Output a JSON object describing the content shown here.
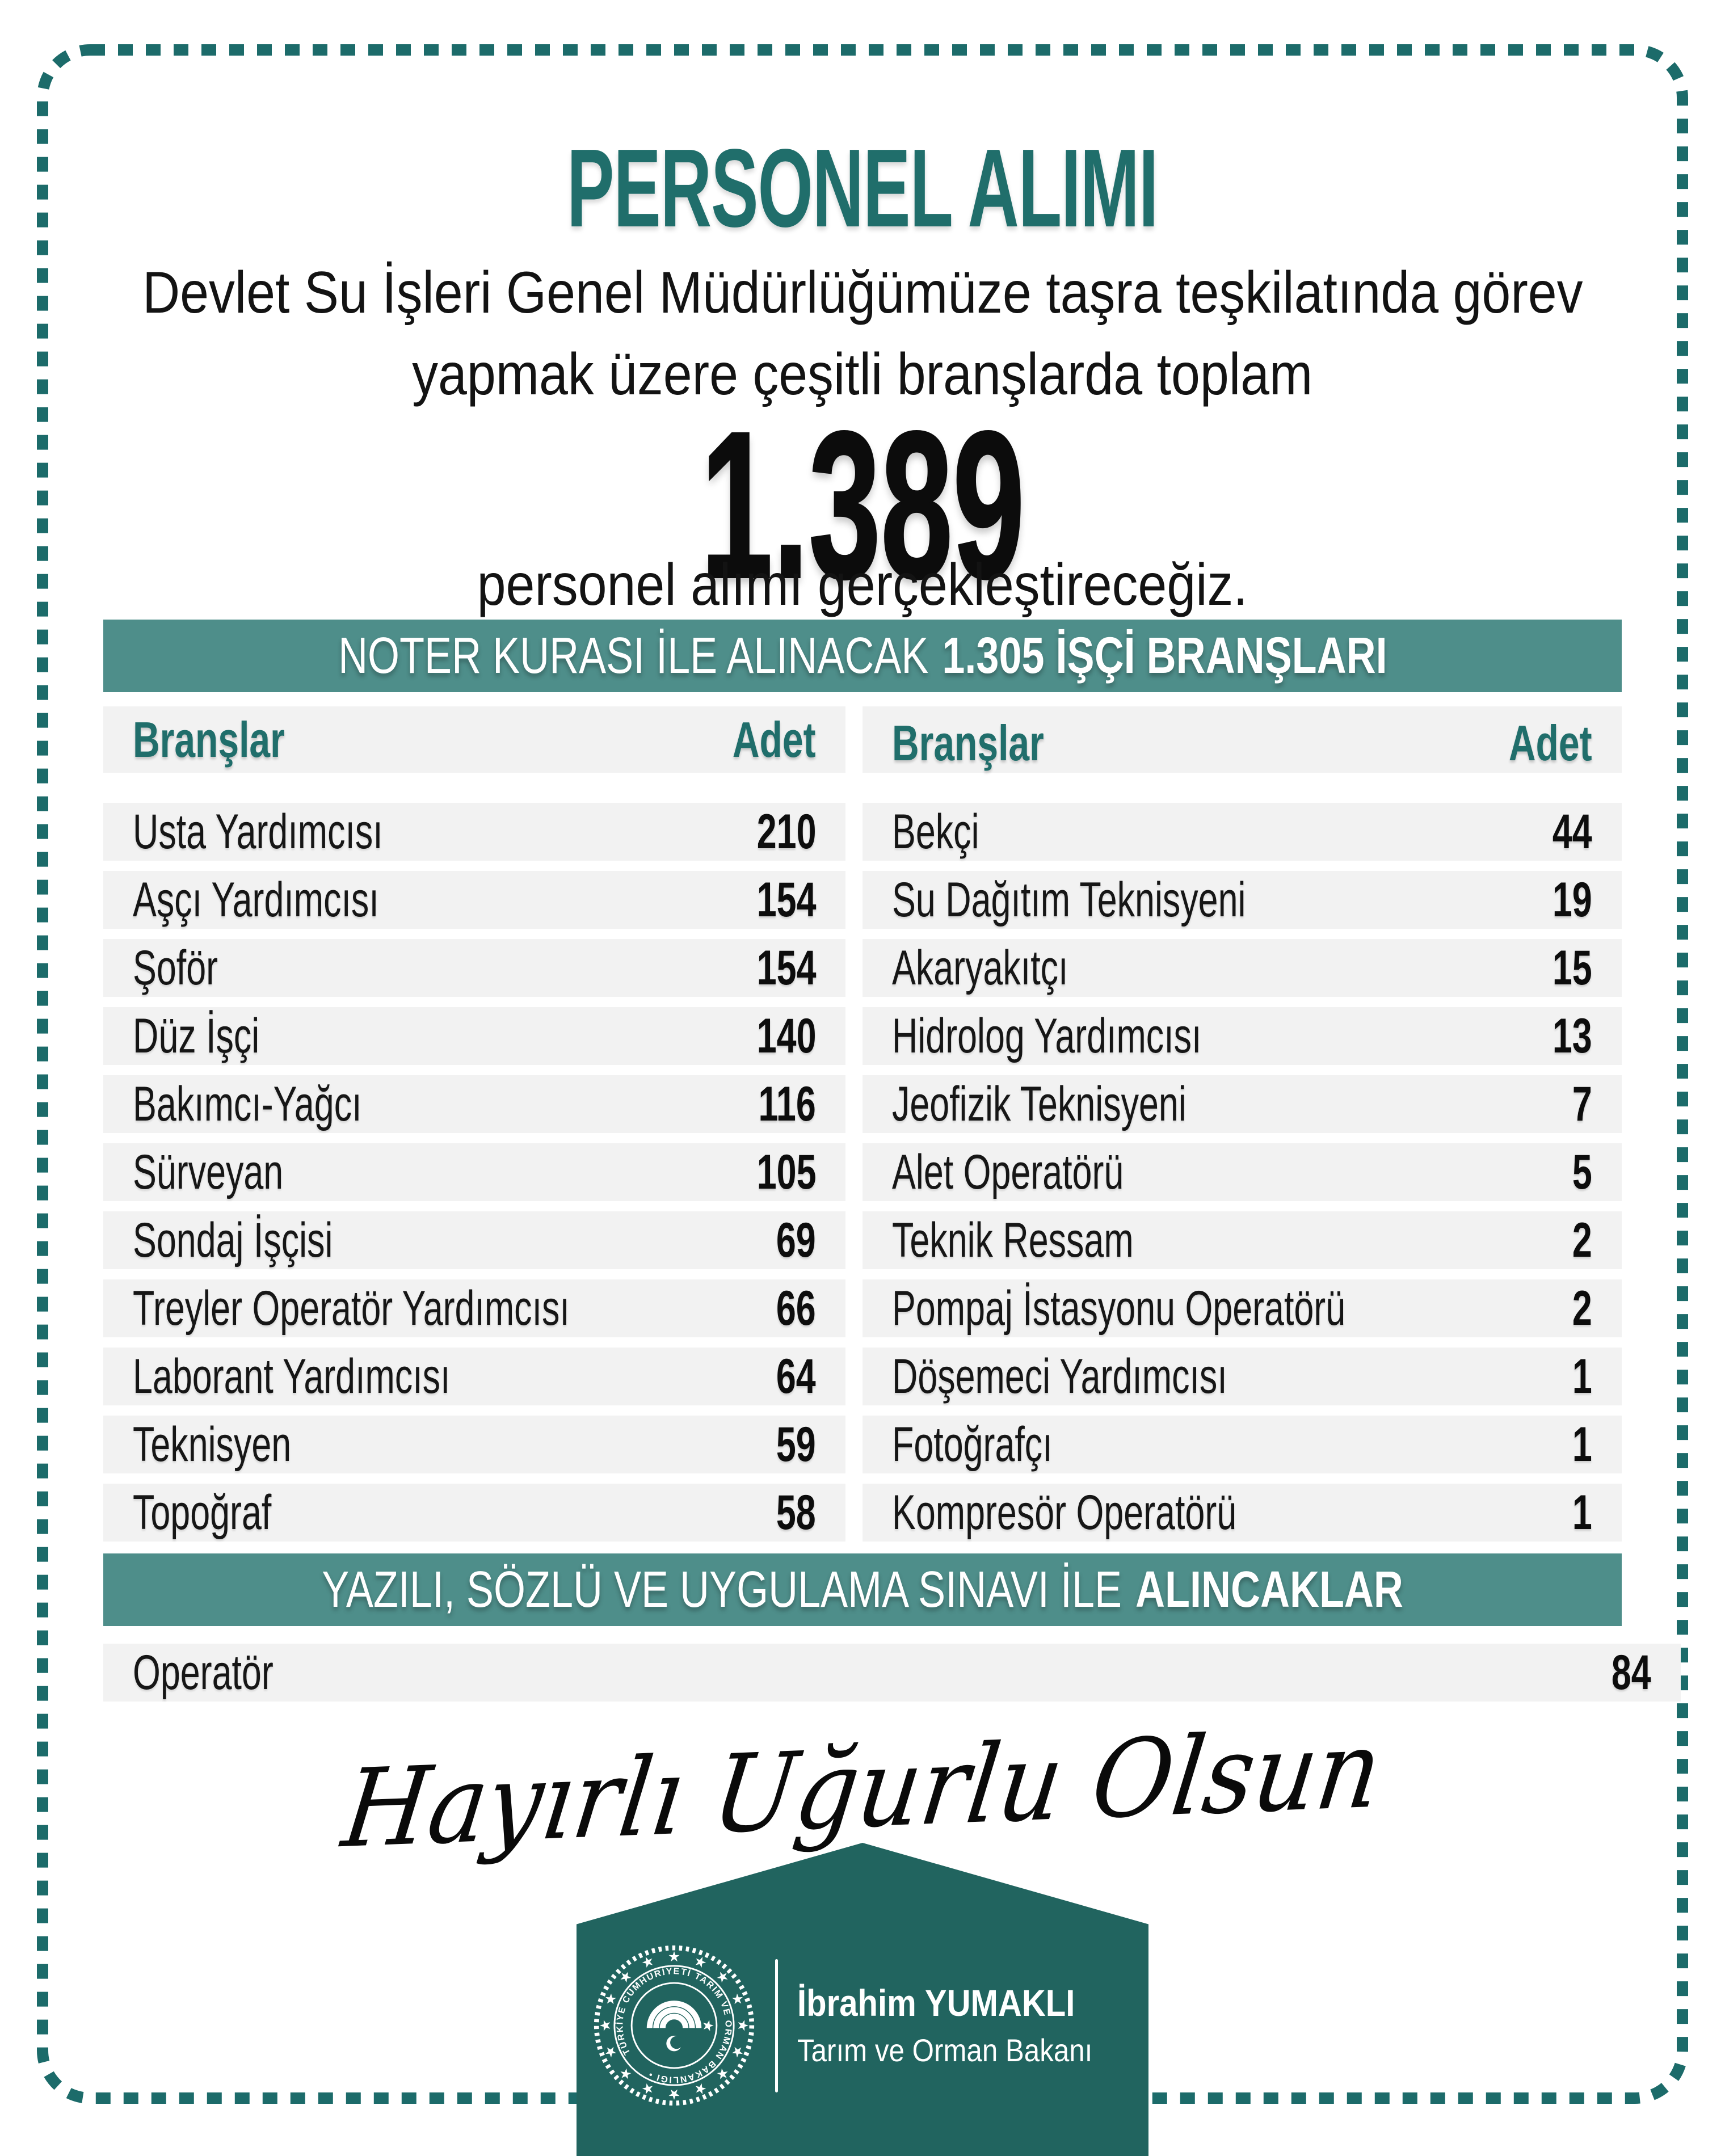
{
  "colors": {
    "teal": "#206e6b",
    "banner": "#4e8e8a",
    "ribbon": "#21645f",
    "border": "#1c6b6a",
    "rowbg": "#f2f2f2",
    "ink": "#111111",
    "white": "#ffffff"
  },
  "title": "PERSONEL ALIMI",
  "intro": {
    "line1": "Devlet Su İşleri Genel Müdürlüğümüze taşra teşkilatında görev",
    "line2": "yapmak üzere çeşitli branşlarda toplam"
  },
  "big_number": "1.389",
  "intro_tail": "personel alımı gerçekleştireceğiz.",
  "lottery_banner": {
    "regular": "NOTER KURASI İLE ALINACAK",
    "bold": "1.305 İŞÇİ BRANŞLARI"
  },
  "table": {
    "headers": {
      "branch": "Branşlar",
      "count": "Adet"
    },
    "left": {
      "rows": [
        {
          "label": "Usta Yardımcısı",
          "count": "210"
        },
        {
          "label": "Aşçı Yardımcısı",
          "count": "154"
        },
        {
          "label": "Şoför",
          "count": "154"
        },
        {
          "label": "Düz İşçi",
          "count": "140"
        },
        {
          "label": "Bakımcı-Yağcı",
          "count": "116"
        },
        {
          "label": "Sürveyan",
          "count": "105"
        },
        {
          "label": "Sondaj İşçisi",
          "count": "69"
        },
        {
          "label": "Treyler Operatör Yardımcısı",
          "count": "66"
        },
        {
          "label": "Laborant Yardımcısı",
          "count": "64"
        },
        {
          "label": "Teknisyen",
          "count": "59"
        },
        {
          "label": "Topoğraf",
          "count": "58"
        }
      ]
    },
    "right": {
      "rows": [
        {
          "label": "Bekçi",
          "count": "44"
        },
        {
          "label": "Su Dağıtım Teknisyeni",
          "count": "19"
        },
        {
          "label": "Akaryakıtçı",
          "count": "15"
        },
        {
          "label": "Hidrolog Yardımcısı",
          "count": "13"
        },
        {
          "label": "Jeofizik Teknisyeni",
          "count": "7"
        },
        {
          "label": "Alet Operatörü",
          "count": "5"
        },
        {
          "label": "Teknik Ressam",
          "count": "2"
        },
        {
          "label": "Pompaj İstasyonu Operatörü",
          "count": "2"
        },
        {
          "label": "Döşemeci Yardımcısı",
          "count": "1"
        },
        {
          "label": "Fotoğrafçı",
          "count": "1"
        },
        {
          "label": "Kompresör Operatörü",
          "count": "1"
        }
      ]
    }
  },
  "exam_banner": {
    "regular": "YAZILI, SÖZLÜ VE UYGULAMA SINAVI  İLE",
    "bold": "ALINCAKLAR"
  },
  "exam_row": {
    "label": "Operatör",
    "count": "84"
  },
  "signature": "Hayırlı Uğurlu Olsun",
  "footer": {
    "name": "İbrahim YUMAKLI",
    "role": "Tarım ve Orman Bakanı",
    "seal_text": "TÜRKİYE CUMHURİYETİ TARIM VE ORMAN BAKANLIĞI  •"
  }
}
